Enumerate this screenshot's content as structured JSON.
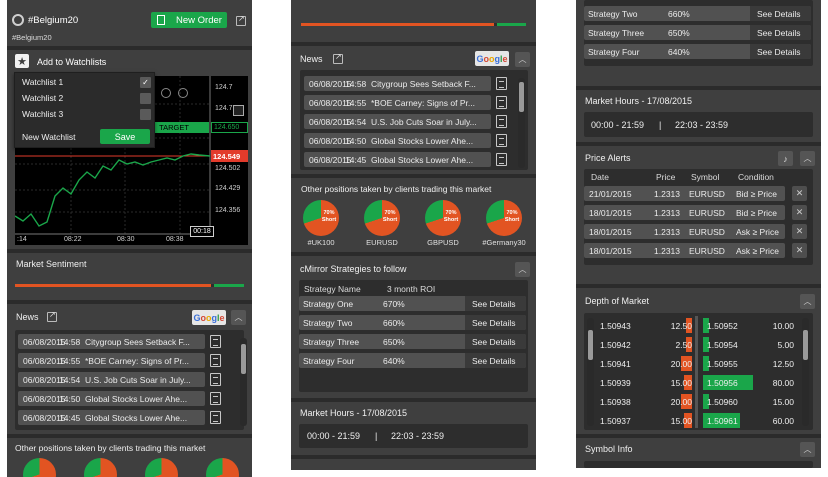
{
  "panel1": {
    "symbol_title": "#Belgium20",
    "symbol_subtitle": "#Belgium20",
    "new_order_label": "New Order",
    "add_to_watchlists_label": "Add to Watchlists",
    "watchlists": [
      {
        "label": "Watchlist 1",
        "checked": true
      },
      {
        "label": "Watchlist 2",
        "checked": false
      },
      {
        "label": "Watchlist 3",
        "checked": false
      }
    ],
    "new_watchlist_label": "New Watchlist",
    "save_label": "Save",
    "chart": {
      "price_labels": [
        "124.7",
        "124.7",
        "124.650",
        "124.549",
        "124.502",
        "124.429",
        "124.356"
      ],
      "target_label": "TARGET",
      "target_price": "124.650",
      "current_price": "124.549",
      "time_labels": [
        ":14",
        "08:22",
        "08:30",
        "08:38"
      ],
      "cursor_time": "00:18"
    },
    "market_sentiment_title": "Market Sentiment",
    "sentiment_red_fraction": 0.87,
    "news_title": "News",
    "google_text": [
      "G",
      "o",
      "o",
      "g",
      "l",
      "e"
    ],
    "news": [
      {
        "date": "06/08/2015",
        "time": "14:58",
        "headline": "Citygroup Sees Setback F..."
      },
      {
        "date": "06/08/2015",
        "time": "14:55",
        "headline": "*BOE Carney: Signs of Pr..."
      },
      {
        "date": "06/08/2015",
        "time": "14:54",
        "headline": "U.S. Job Cuts Soar in July..."
      },
      {
        "date": "06/08/2015",
        "time": "14:50",
        "headline": "Global Stocks Lower Ahe..."
      },
      {
        "date": "06/08/2015",
        "time": "14:45",
        "headline": "Global Stocks Lower Ahe..."
      }
    ],
    "other_positions_title": "Other positions taken by clients trading this market"
  },
  "panel2": {
    "sentiment_red_fraction": 0.87,
    "news_title": "News",
    "news": [
      {
        "date": "06/08/2015",
        "time": "14:58",
        "headline": "Citygroup Sees Setback F..."
      },
      {
        "date": "06/08/2015",
        "time": "14:55",
        "headline": "*BOE Carney: Signs of Pr..."
      },
      {
        "date": "06/08/2015",
        "time": "14:54",
        "headline": "U.S. Job Cuts Soar in July..."
      },
      {
        "date": "06/08/2015",
        "time": "14:50",
        "headline": "Global Stocks Lower Ahe..."
      },
      {
        "date": "06/08/2015",
        "time": "14:45",
        "headline": "Global Stocks Lower Ahe..."
      }
    ],
    "other_positions_title": "Other positions taken by clients trading this market",
    "positions": [
      {
        "name": "#UK100",
        "pct": "70%",
        "side": "Short",
        "short_fraction": 0.7
      },
      {
        "name": "EURUSD",
        "pct": "70%",
        "side": "Short",
        "short_fraction": 0.7
      },
      {
        "name": "GBPUSD",
        "pct": "70%",
        "side": "Short",
        "short_fraction": 0.7
      },
      {
        "name": "#Germany30",
        "pct": "70%",
        "side": "Short",
        "short_fraction": 0.7
      }
    ],
    "cmirror_title": "cMirror Strategies to follow",
    "strategy_headers": {
      "name": "Strategy Name",
      "roi": "3 month ROI"
    },
    "strategies": [
      {
        "name": "Strategy One",
        "roi": "670%",
        "action": "See Details"
      },
      {
        "name": "Strategy Two",
        "roi": "660%",
        "action": "See Details"
      },
      {
        "name": "Strategy Three",
        "roi": "650%",
        "action": "See Details"
      },
      {
        "name": "Strategy Four",
        "roi": "640%",
        "action": "See Details"
      }
    ],
    "market_hours_title": "Market Hours - 17/08/2015",
    "market_hours_a": "00:00 - 21:59",
    "market_hours_sep": "|",
    "market_hours_b": "22:03 - 23:59"
  },
  "panel3": {
    "strategies": [
      {
        "name": "Strategy Two",
        "roi": "660%",
        "action": "See Details"
      },
      {
        "name": "Strategy Three",
        "roi": "650%",
        "action": "See Details"
      },
      {
        "name": "Strategy Four",
        "roi": "640%",
        "action": "See Details"
      }
    ],
    "market_hours_title": "Market Hours - 17/08/2015",
    "market_hours_a": "00:00 - 21:59",
    "market_hours_sep": "|",
    "market_hours_b": "22:03 - 23:59",
    "price_alerts_title": "Price Alerts",
    "alert_headers": {
      "date": "Date",
      "price": "Price",
      "symbol": "Symbol",
      "condition": "Condition"
    },
    "alerts": [
      {
        "date": "21/01/2015",
        "price": "1.2313",
        "symbol": "EURUSD",
        "condition": "Bid ≥ Price"
      },
      {
        "date": "18/01/2015",
        "price": "1.2313",
        "symbol": "EURUSD",
        "condition": "Bid ≥ Price"
      },
      {
        "date": "18/01/2015",
        "price": "1.2313",
        "symbol": "EURUSD",
        "condition": "Ask ≥ Price"
      },
      {
        "date": "18/01/2015",
        "price": "1.2313",
        "symbol": "EURUSD",
        "condition": "Ask ≥ Price"
      }
    ],
    "close_glyph": "✕",
    "depth_title": "Depth of Market",
    "depth": [
      {
        "bid": "1.50943",
        "bid_vol": "12.50",
        "bid_frac": 0.12,
        "ask": "1.50952",
        "ask_vol": "10.00",
        "ask_frac": 0.1
      },
      {
        "bid": "1.50942",
        "bid_vol": "2.50",
        "bid_frac": 0.05,
        "ask": "1.50954",
        "ask_vol": "5.00",
        "ask_frac": 0.05
      },
      {
        "bid": "1.50941",
        "bid_vol": "20.00",
        "bid_frac": 0.22,
        "ask": "1.50955",
        "ask_vol": "12.50",
        "ask_frac": 0.05
      },
      {
        "bid": "1.50939",
        "bid_vol": "15.00",
        "bid_frac": 0.16,
        "ask": "1.50956",
        "ask_vol": "80.00",
        "ask_frac": 0.8
      },
      {
        "bid": "1.50938",
        "bid_vol": "20.00",
        "bid_frac": 0.22,
        "ask": "1.50960",
        "ask_vol": "15.00",
        "ask_frac": 0.05
      },
      {
        "bid": "1.50937",
        "bid_vol": "15.00",
        "bid_frac": 0.16,
        "ask": "1.50961",
        "ask_vol": "60.00",
        "ask_frac": 0.6
      }
    ],
    "symbol_info_title": "Symbol Info"
  },
  "colors": {
    "accent_green": "#1aa64a",
    "accent_red": "#e25422",
    "panel_bg": "#3f3f3f"
  }
}
